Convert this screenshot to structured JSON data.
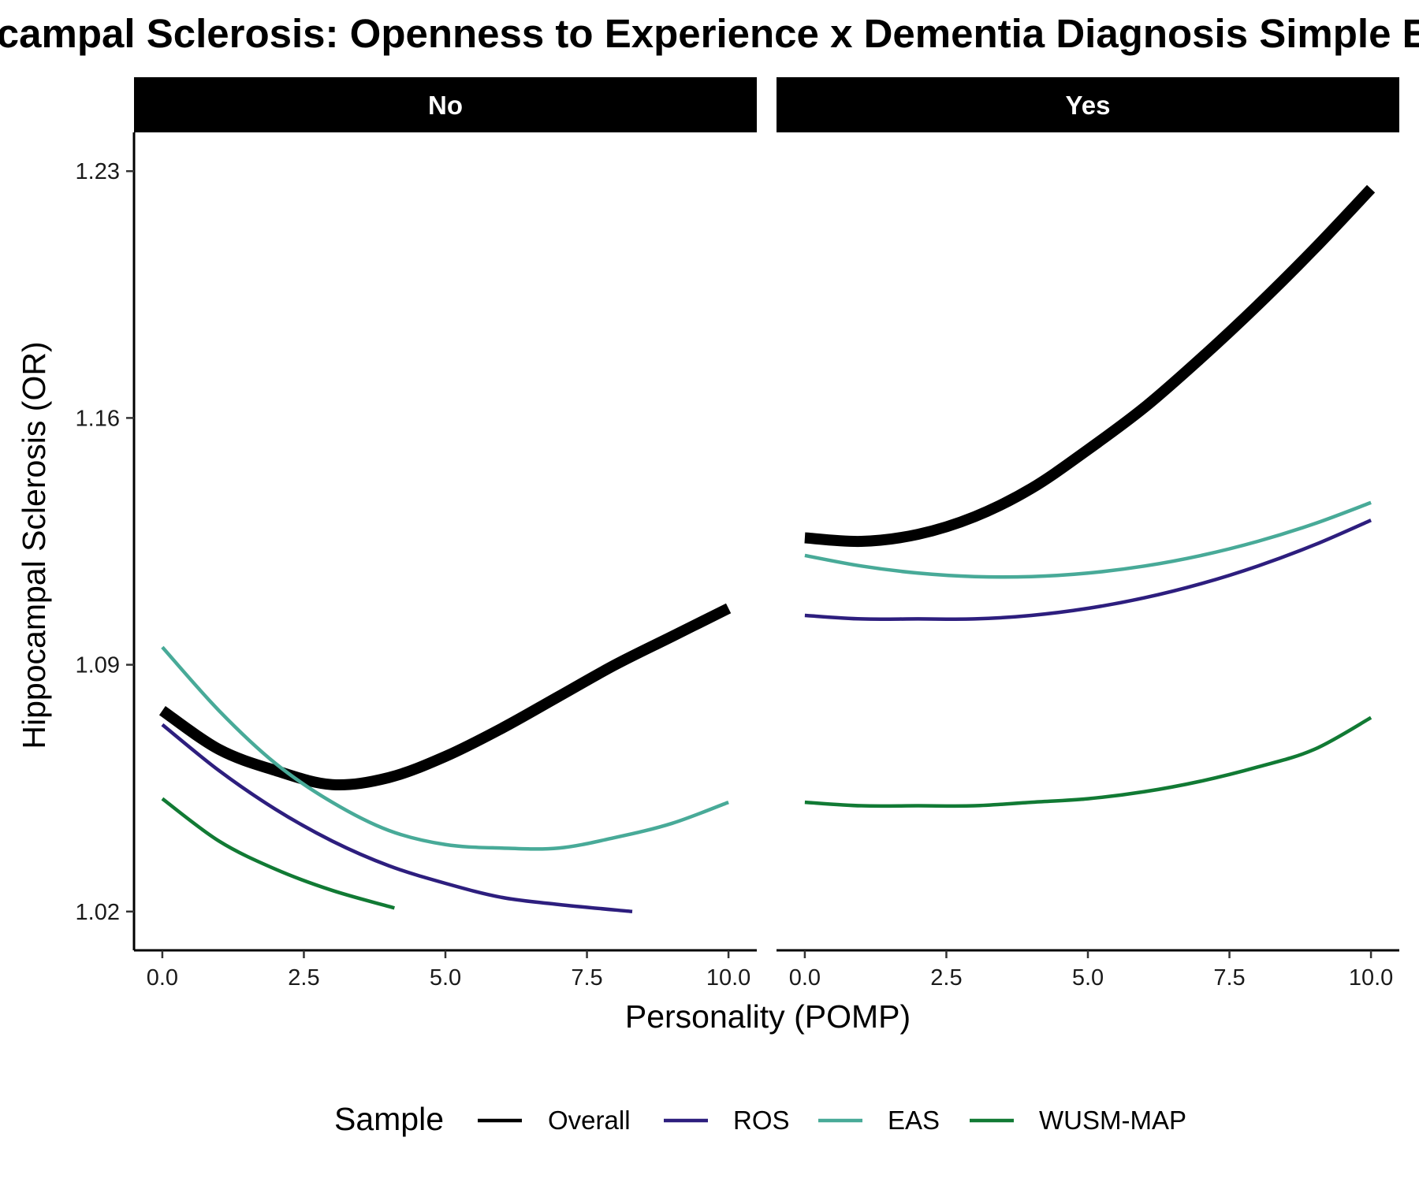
{
  "chart_data": {
    "type": "line",
    "title": "Hippocampal Sclerosis: Openness to Experience x Dementia Diagnosis Simple Effects",
    "xlabel": "Personality (POMP)",
    "ylabel": "Hippocampal Sclerosis (OR)",
    "xlim": [
      -0.5,
      10.5
    ],
    "ylim": [
      1.009,
      1.241
    ],
    "x_ticks": [
      0,
      2.5,
      5,
      7.5,
      10
    ],
    "x_tick_labels": [
      "0.0",
      "2.5",
      "5.0",
      "7.5",
      "10.0"
    ],
    "y_ticks": [
      1.02,
      1.09,
      1.16,
      1.23
    ],
    "y_tick_labels": [
      "1.02",
      "1.09",
      "1.16",
      "1.23"
    ],
    "grid": false,
    "legend": {
      "title": "Sample",
      "position": "bottom",
      "entries": [
        "Overall",
        "ROS",
        "EAS",
        "WUSM-MAP"
      ]
    },
    "facet_variable": "Dementia Diagnosis",
    "panels": [
      {
        "label": "No",
        "series": [
          {
            "name": "Overall",
            "color": "#000000",
            "x": [
              0,
              1,
              2,
              3,
              4,
              5,
              6,
              7,
              8,
              9,
              10
            ],
            "y": [
              1.077,
              1.066,
              1.06,
              1.056,
              1.058,
              1.064,
              1.072,
              1.081,
              1.09,
              1.098,
              1.106
            ]
          },
          {
            "name": "ROS",
            "color": "#2D1E7E",
            "x": [
              0,
              1,
              2,
              3,
              4,
              5,
              6,
              7,
              8.3
            ],
            "y": [
              1.073,
              1.06,
              1.049,
              1.04,
              1.033,
              1.028,
              1.024,
              1.022,
              1.02
            ]
          },
          {
            "name": "EAS",
            "color": "#48AA98",
            "x": [
              0,
              1,
              2,
              3,
              4,
              5,
              6,
              7,
              8,
              9,
              10
            ],
            "y": [
              1.095,
              1.077,
              1.062,
              1.051,
              1.043,
              1.039,
              1.038,
              1.038,
              1.041,
              1.045,
              1.051
            ]
          },
          {
            "name": "WUSM-MAP",
            "color": "#117A34",
            "x": [
              0,
              1,
              2,
              3,
              4.1
            ],
            "y": [
              1.052,
              1.04,
              1.032,
              1.026,
              1.021
            ]
          }
        ]
      },
      {
        "label": "Yes",
        "series": [
          {
            "name": "Overall",
            "color": "#000000",
            "x": [
              0,
              1,
              2,
              3,
              4,
              5,
              6,
              7,
              8,
              9,
              10
            ],
            "y": [
              1.126,
              1.125,
              1.127,
              1.132,
              1.14,
              1.151,
              1.163,
              1.177,
              1.192,
              1.208,
              1.225
            ]
          },
          {
            "name": "ROS",
            "color": "#2D1E7E",
            "x": [
              0,
              1,
              2,
              3,
              4,
              5,
              6,
              7,
              8,
              9,
              10
            ],
            "y": [
              1.104,
              1.103,
              1.103,
              1.103,
              1.104,
              1.106,
              1.109,
              1.113,
              1.118,
              1.124,
              1.131
            ]
          },
          {
            "name": "EAS",
            "color": "#48AA98",
            "x": [
              0,
              1,
              2,
              3,
              4,
              5,
              6,
              7,
              8,
              9,
              10
            ],
            "y": [
              1.121,
              1.118,
              1.116,
              1.115,
              1.115,
              1.116,
              1.118,
              1.121,
              1.125,
              1.13,
              1.136
            ]
          },
          {
            "name": "WUSM-MAP",
            "color": "#117A34",
            "x": [
              0,
              1,
              2,
              3,
              4,
              5,
              6,
              7,
              8,
              9,
              10
            ],
            "y": [
              1.051,
              1.05,
              1.05,
              1.05,
              1.051,
              1.052,
              1.054,
              1.057,
              1.061,
              1.066,
              1.075
            ]
          }
        ]
      }
    ]
  }
}
